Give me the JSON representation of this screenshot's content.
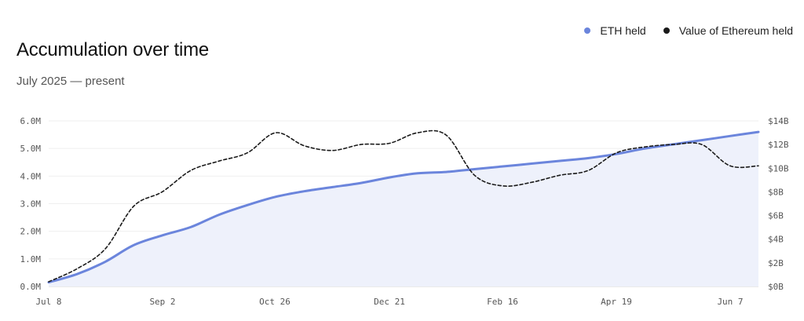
{
  "title": "Accumulation over time",
  "subtitle": "July 2025 — present",
  "legend": [
    {
      "label": "ETH held",
      "color": "#6b85dc",
      "marker": "dot"
    },
    {
      "label": "Value of Ethereum held",
      "color": "#1a1a1a",
      "marker": "dot"
    }
  ],
  "chart_data": {
    "type": "line",
    "x_tick_labels": [
      "Jul 8",
      "Sep 2",
      "Oct 26",
      "Dec 21",
      "Feb 16",
      "Apr 19",
      "Jun 7"
    ],
    "left_axis": {
      "ticks": [
        "0.0M",
        "1.0M",
        "2.0M",
        "3.0M",
        "4.0M",
        "5.0M",
        "6.0M"
      ],
      "ylim": [
        0,
        6000000
      ]
    },
    "right_axis": {
      "ticks": [
        "$0B",
        "$2B",
        "$4B",
        "$6B",
        "$8B",
        "$10B",
        "$12B",
        "$14B"
      ],
      "ylim": [
        0,
        14000000000
      ]
    },
    "grid": true,
    "legend_position": "top-right",
    "series": [
      {
        "name": "ETH held",
        "axis": "left",
        "style": "solid-area",
        "color": "#6b85dc",
        "x": [
          "2025-07-08",
          "2025-07-22",
          "2025-08-05",
          "2025-08-19",
          "2025-09-02",
          "2025-09-16",
          "2025-09-30",
          "2025-10-14",
          "2025-10-28",
          "2025-11-11",
          "2025-11-25",
          "2025-12-09",
          "2025-12-23",
          "2026-01-06",
          "2026-01-20",
          "2026-02-03",
          "2026-02-17",
          "2026-03-03",
          "2026-03-17",
          "2026-03-31",
          "2026-04-14",
          "2026-04-28",
          "2026-05-12",
          "2026-05-26",
          "2026-06-09",
          "2026-06-23"
        ],
        "y": [
          150000,
          450000,
          900000,
          1500000,
          1850000,
          2150000,
          2600000,
          2950000,
          3250000,
          3450000,
          3600000,
          3750000,
          3950000,
          4100000,
          4150000,
          4250000,
          4350000,
          4450000,
          4550000,
          4650000,
          4800000,
          5000000,
          5150000,
          5300000,
          5450000,
          5600000
        ]
      },
      {
        "name": "Value of Ethereum held",
        "axis": "right",
        "style": "dashed",
        "color": "#1a1a1a",
        "x": [
          "2025-07-08",
          "2025-07-22",
          "2025-08-05",
          "2025-08-19",
          "2025-09-02",
          "2025-09-16",
          "2025-09-30",
          "2025-10-14",
          "2025-10-28",
          "2025-11-11",
          "2025-11-25",
          "2025-12-09",
          "2025-12-23",
          "2026-01-06",
          "2026-01-20",
          "2026-02-03",
          "2026-02-17",
          "2026-03-03",
          "2026-03-17",
          "2026-03-31",
          "2026-04-14",
          "2026-04-28",
          "2026-05-12",
          "2026-05-26",
          "2026-06-09",
          "2026-06-23"
        ],
        "y": [
          400000000,
          1500000000,
          3200000000,
          6800000000,
          8000000000,
          9800000000,
          10600000000,
          11300000000,
          13000000000,
          11900000000,
          11500000000,
          12000000000,
          12100000000,
          13000000000,
          12800000000,
          9400000000,
          8500000000,
          8800000000,
          9400000000,
          9800000000,
          11300000000,
          11800000000,
          12000000000,
          12000000000,
          10200000000,
          10200000000
        ]
      }
    ]
  }
}
